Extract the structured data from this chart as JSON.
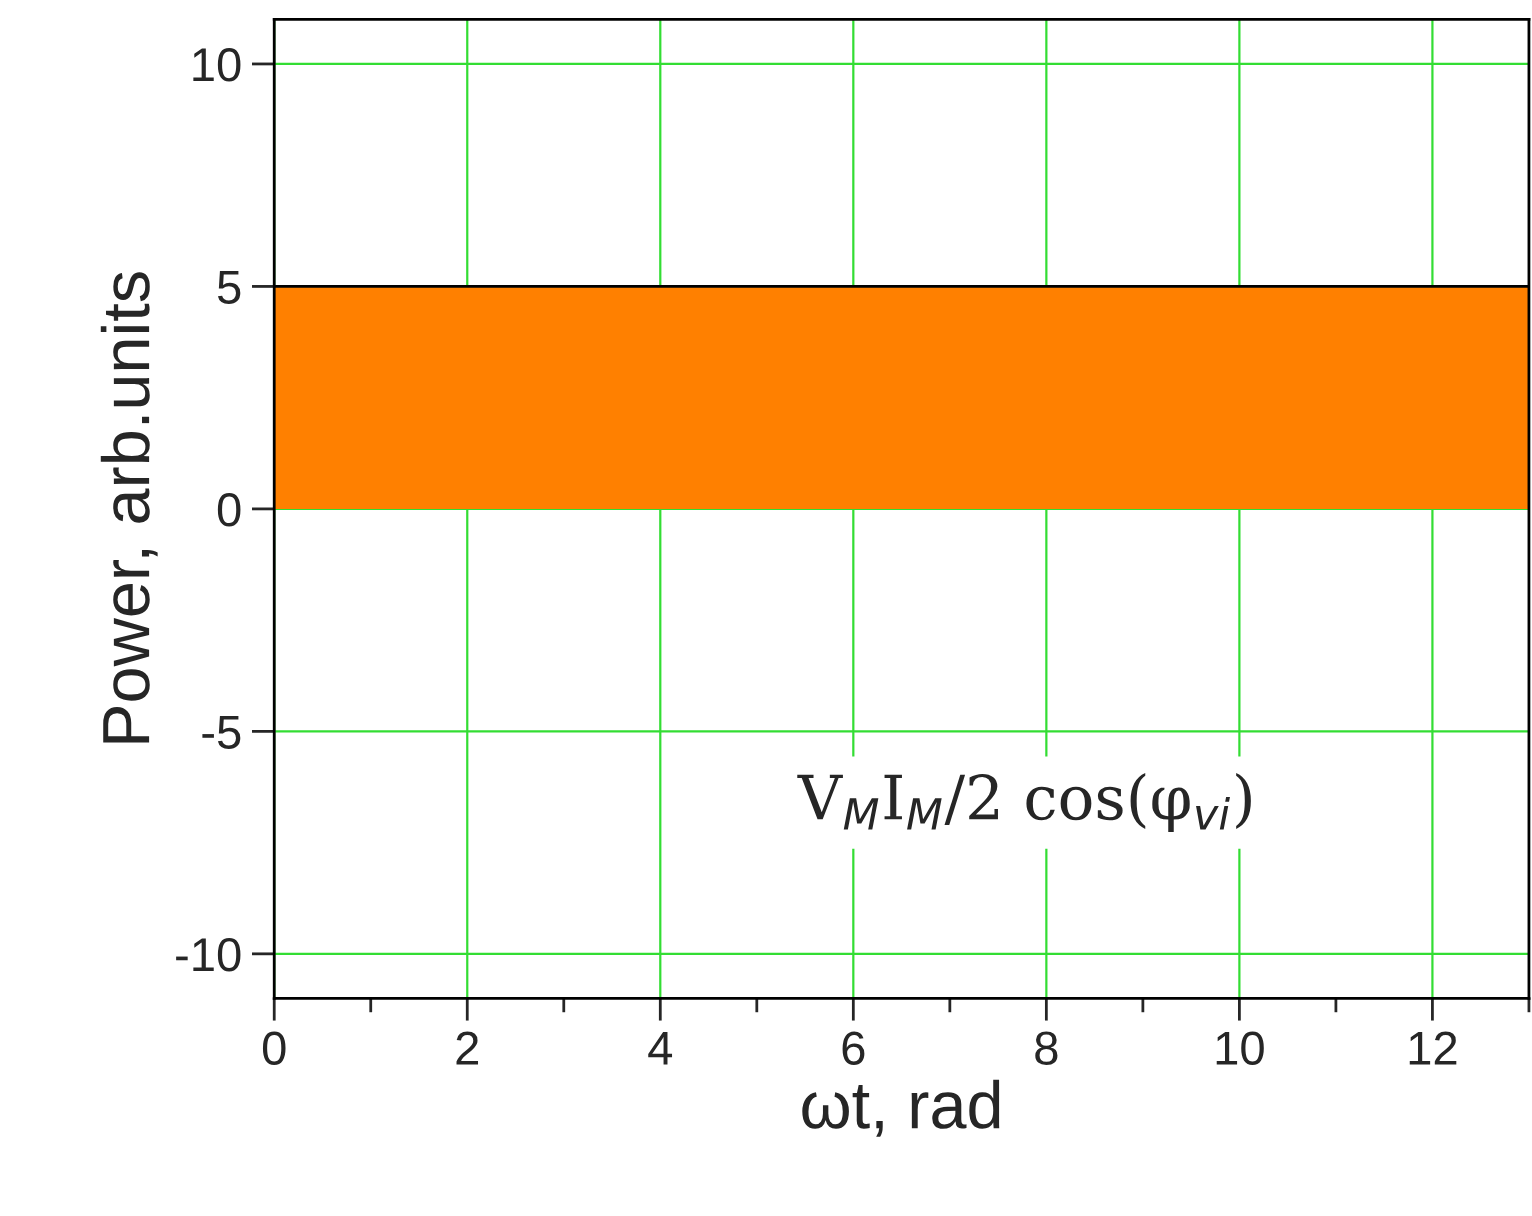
{
  "chart_data": {
    "type": "area",
    "xlabel": "ωt, rad",
    "ylabel": "Power, arb.units",
    "x": [
      0,
      13
    ],
    "series": [
      {
        "color": "#ff8000",
        "values": [
          5,
          5
        ]
      }
    ],
    "xlim": [
      0,
      13
    ],
    "xticks": [
      0,
      2,
      4,
      6,
      8,
      10,
      12
    ],
    "ylim": [
      -11,
      11
    ],
    "yticks": [
      -10,
      -5,
      0,
      5,
      10
    ],
    "grid": true,
    "annotations": [
      "V$_{M}$I$_{M}$/2 cos(φ$_{vi}$)"
    ]
  }
}
